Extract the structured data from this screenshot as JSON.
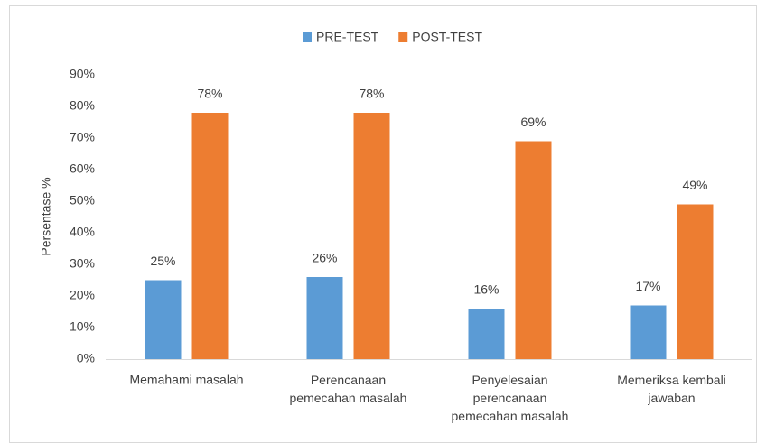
{
  "chart_data": {
    "type": "bar",
    "categories": [
      "Memahami masalah",
      "Perencanaan\npemecahan masalah",
      "Penyelesaian\nperencanaan\npemecahan masalah",
      "Memeriksa kembali\njawaban"
    ],
    "series": [
      {
        "name": "PRE-TEST",
        "color": "#5b9bd5",
        "values": [
          25,
          26,
          16,
          17
        ],
        "value_labels": [
          "25%",
          "26%",
          "16%",
          "17%"
        ]
      },
      {
        "name": "POST-TEST",
        "color": "#ed7d31",
        "values": [
          78,
          78,
          69,
          49
        ],
        "value_labels": [
          "78%",
          "78%",
          "69%",
          "49%"
        ]
      }
    ],
    "y_label": "Persentase %",
    "ylim": [
      0,
      90
    ],
    "yticks": [
      {
        "value": 0,
        "label": "0%"
      },
      {
        "value": 10,
        "label": "10%"
      },
      {
        "value": 20,
        "label": "20%"
      },
      {
        "value": 30,
        "label": "30%"
      },
      {
        "value": 40,
        "label": "40%"
      },
      {
        "value": 50,
        "label": "50%"
      },
      {
        "value": 60,
        "label": "60%"
      },
      {
        "value": 70,
        "label": "70%"
      },
      {
        "value": 80,
        "label": "80%"
      },
      {
        "value": 90,
        "label": "90%"
      }
    ],
    "grid": false,
    "legend": "top"
  }
}
